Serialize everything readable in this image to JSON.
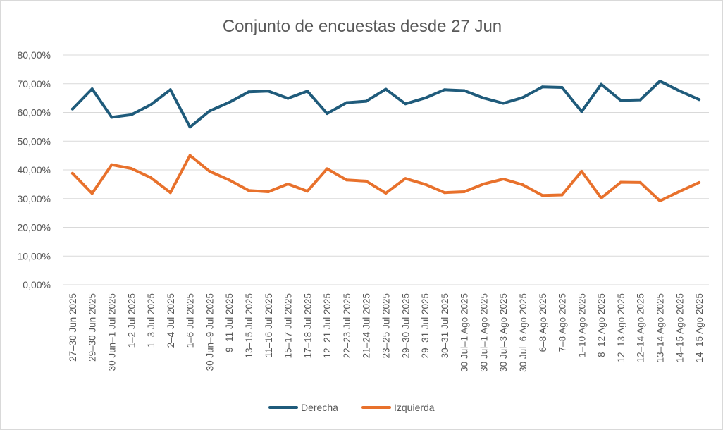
{
  "chart_data": {
    "type": "line",
    "title": "Conjunto de encuestas desde 27 Jun",
    "xlabel": "",
    "ylabel": "",
    "ylim": [
      0,
      0.8
    ],
    "yticks": [
      "0,00%",
      "10,00%",
      "20,00%",
      "30,00%",
      "40,00%",
      "50,00%",
      "60,00%",
      "70,00%",
      "80,00%"
    ],
    "grid": true,
    "legend_position": "bottom",
    "categories": [
      "27–30 Jun 2025",
      "29–30 Jun 2025",
      "30 Jun–1 Jul 2025",
      "1–2 Jul 2025",
      "1–3 Jul 2025",
      "2–4 Jul 2025",
      "1–6 Jul 2025",
      "30 Jun–9 Jul 2025",
      "9–11 Jul 2025",
      "13–15 Jul 2025",
      "11–16 Jul 2025",
      "15–17 Jul 2025",
      "17–18 Jul 2025",
      "12–21 Jul 2025",
      "22–23 Jul 2025",
      "21–24 Jul 2025",
      "23–25 Jul 2025",
      "29–30 Jul 2025",
      "29–31 Jul 2025",
      "30–31 Jul 2025",
      "30 Jul–1 Ago 2025",
      "30 Jul–1 Ago 2025",
      "30 Jul–3 Ago 2025",
      "30 Jul–6 Ago 2025",
      "6–8 Ago 2025",
      "7–8 Ago 2025",
      "1–10 Ago 2025",
      "8–12 Ago 2025",
      "12–13 Ago 2025",
      "12–14 Ago 2025",
      "13–14 Ago 2025",
      "14–15 Ago 2025",
      "14–15 Ago 2025"
    ],
    "series": [
      {
        "name": "Derecha",
        "color": "#1f5b7b",
        "values": [
          0.612,
          0.682,
          0.583,
          0.592,
          0.627,
          0.679,
          0.549,
          0.605,
          0.635,
          0.672,
          0.674,
          0.649,
          0.674,
          0.596,
          0.634,
          0.639,
          0.681,
          0.63,
          0.65,
          0.679,
          0.676,
          0.65,
          0.632,
          0.652,
          0.689,
          0.687,
          0.603,
          0.698,
          0.642,
          0.644,
          0.709,
          0.675,
          0.645
        ]
      },
      {
        "name": "Izquierda",
        "color": "#e8712c",
        "values": [
          0.388,
          0.318,
          0.418,
          0.405,
          0.373,
          0.321,
          0.45,
          0.395,
          0.365,
          0.328,
          0.324,
          0.351,
          0.326,
          0.404,
          0.365,
          0.361,
          0.319,
          0.37,
          0.35,
          0.321,
          0.324,
          0.351,
          0.368,
          0.348,
          0.311,
          0.313,
          0.395,
          0.302,
          0.357,
          0.356,
          0.292,
          0.325,
          0.356
        ]
      }
    ]
  }
}
